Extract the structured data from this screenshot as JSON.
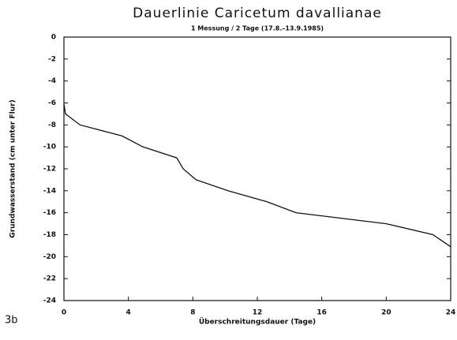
{
  "chart_data": {
    "type": "line",
    "title": "Dauerlinie Caricetum davallianae",
    "subtitle": "1 Messung / 2 Tage (17.8.–13.9.1985)",
    "xlabel": "Überschreitungsdauer (Tage)",
    "ylabel": "Grundwasserstand (cm unter Flur)",
    "panel_label": "3b",
    "x": [
      0,
      0.1,
      1,
      3.6,
      4.9,
      7.0,
      7.4,
      8.2,
      10.2,
      12.6,
      14.4,
      20.0,
      22.9,
      24
    ],
    "series": [
      {
        "color": "#111111",
        "values": [
          -6.1,
          -7.0,
          -8.0,
          -9.0,
          -10.0,
          -11.0,
          -12.0,
          -13.0,
          -14.0,
          -15.0,
          -16.0,
          -17.0,
          -18.0,
          -19.1
        ]
      }
    ],
    "xlim": [
      0,
      24
    ],
    "xticks": [
      0,
      4,
      8,
      12,
      16,
      20,
      24
    ],
    "ylim": [
      -24,
      0
    ],
    "yticks": [
      0,
      -2,
      -4,
      -6,
      -8,
      -10,
      -12,
      -14,
      -16,
      -18,
      -20,
      -22,
      -24
    ],
    "grid": false
  }
}
